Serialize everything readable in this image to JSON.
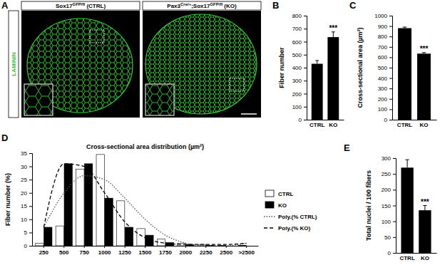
{
  "image_panel": {
    "panel": "A",
    "side_label": "LAMININ",
    "images": [
      {
        "title": [
          {
            "text": "Sox17"
          },
          {
            "text": "GFP/fl",
            "sup": true
          },
          {
            "text": " (CTRL)"
          }
        ]
      },
      {
        "title": [
          {
            "text": "Pax3"
          },
          {
            "text": "Cre/+",
            "sup": true
          },
          {
            "text": ";Sox17"
          },
          {
            "text": "GFP/fl",
            "sup": true
          },
          {
            "text": " (KO)"
          }
        ]
      }
    ]
  },
  "chart_data": [
    {
      "panel": "B",
      "type": "bar",
      "y_label": "Fiber number",
      "categories": [
        "CTRL",
        "KO"
      ],
      "values": [
        430,
        635
      ],
      "errors": [
        25,
        40
      ],
      "color": "#000000",
      "ylim": [
        0,
        800
      ],
      "yticks": [
        0,
        100,
        200,
        300,
        400,
        500,
        600,
        700,
        800
      ],
      "annotations": [
        {
          "x": "KO",
          "text": "***"
        }
      ]
    },
    {
      "panel": "C",
      "type": "bar",
      "y_label": "Cross-sectional area (µm²)",
      "categories": [
        "CTRL",
        "KO"
      ],
      "values": [
        880,
        635
      ],
      "errors": [
        10,
        10
      ],
      "color": "#000000",
      "ylim": [
        0,
        1000
      ],
      "yticks": [
        0,
        100,
        200,
        300,
        400,
        500,
        600,
        700,
        800,
        900,
        1000
      ],
      "annotations": [
        {
          "x": "KO",
          "text": "***"
        }
      ]
    },
    {
      "panel": "D",
      "type": "bar",
      "title": "Cross-sectional area distribution (µm²)",
      "y_label": "Fiber number (%)",
      "categories": [
        "250",
        "500",
        "750",
        "1000",
        "1250",
        "1500",
        "1750",
        "2000",
        "2250",
        "2500",
        ">2500"
      ],
      "series": [
        {
          "name": "CTRL",
          "type": "bar",
          "color": "#ffffff",
          "values": [
            1,
            7.5,
            29,
            34.5,
            17,
            6.5,
            2.5,
            1,
            0.5,
            0.2,
            0.2
          ]
        },
        {
          "name": "KO",
          "type": "bar",
          "color": "#000000",
          "values": [
            7,
            31,
            31,
            18,
            7,
            4,
            1.2,
            0.5,
            0.2,
            0,
            0
          ]
        },
        {
          "name": "Poly.(% CTRL)",
          "type": "line",
          "line_style": "dotted",
          "color": "#555555",
          "values": [
            7,
            20,
            26.5,
            25,
            18,
            10,
            4,
            1,
            0,
            0,
            1
          ]
        },
        {
          "name": "Poly.(% KO)",
          "type": "line",
          "line_style": "dashed",
          "color": "#000000",
          "values": [
            7,
            31,
            30,
            20,
            9,
            3,
            1,
            0.5,
            0.5,
            0.5,
            1
          ]
        }
      ],
      "ylim": [
        0,
        35
      ],
      "yticks": [
        0,
        5,
        10,
        15,
        20,
        25,
        30,
        35
      ],
      "legend": "right"
    },
    {
      "panel": "E",
      "type": "bar",
      "y_label": "Total nuclei / 100 fibers",
      "categories": [
        "CTRL",
        "KO"
      ],
      "values": [
        270,
        135
      ],
      "errors": [
        25,
        15
      ],
      "color": "#000000",
      "ylim": [
        0,
        300
      ],
      "yticks": [
        0,
        50,
        100,
        150,
        200,
        250,
        300
      ],
      "annotations": [
        {
          "x": "KO",
          "text": "***"
        }
      ]
    }
  ]
}
